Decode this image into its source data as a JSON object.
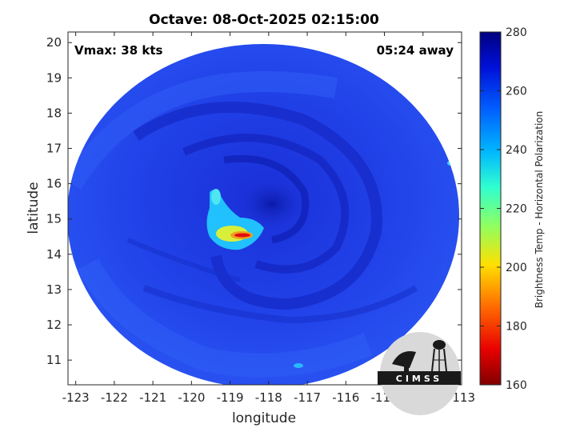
{
  "chart_data": {
    "type": "heatmap",
    "title": "Octave: 08-Oct-2025 02:15:00",
    "xlabel": "longitude",
    "ylabel": "latitude",
    "xlim": [
      -123.2,
      -113
    ],
    "ylim": [
      10.3,
      20.3
    ],
    "x_ticks": [
      "-123",
      "-122",
      "-121",
      "-120",
      "-119",
      "-118",
      "-117",
      "-116",
      "-115",
      "-114",
      "-113"
    ],
    "y_ticks": [
      "20",
      "19",
      "18",
      "17",
      "16",
      "15",
      "14",
      "13",
      "12",
      "11"
    ],
    "colorbar": {
      "label": "Brightness Temp - Horizontal Polarization",
      "range": [
        160,
        280
      ],
      "ticks": [
        "280",
        "260",
        "240",
        "220",
        "200",
        "180",
        "160"
      ]
    },
    "storm_center": {
      "lon": -118.0,
      "lat": 14.9
    },
    "cold_core_min_temp": 190,
    "swath_center": {
      "lon": -118.1,
      "lat": 15.3
    },
    "grid": false
  },
  "annotations": {
    "vmax": "Vmax: 38 kts",
    "time_away": "05:24 away"
  },
  "logo": {
    "text": "CIMSS",
    "colors": {
      "dark": "#1a1a1a",
      "light": "#d9d9d9"
    }
  },
  "colors": {
    "background_blue": "#1f3fe6",
    "deep_blue": "#1428c8",
    "cyan": "#28b4ff",
    "yellow": "#e8e828",
    "red": "#e01010"
  }
}
